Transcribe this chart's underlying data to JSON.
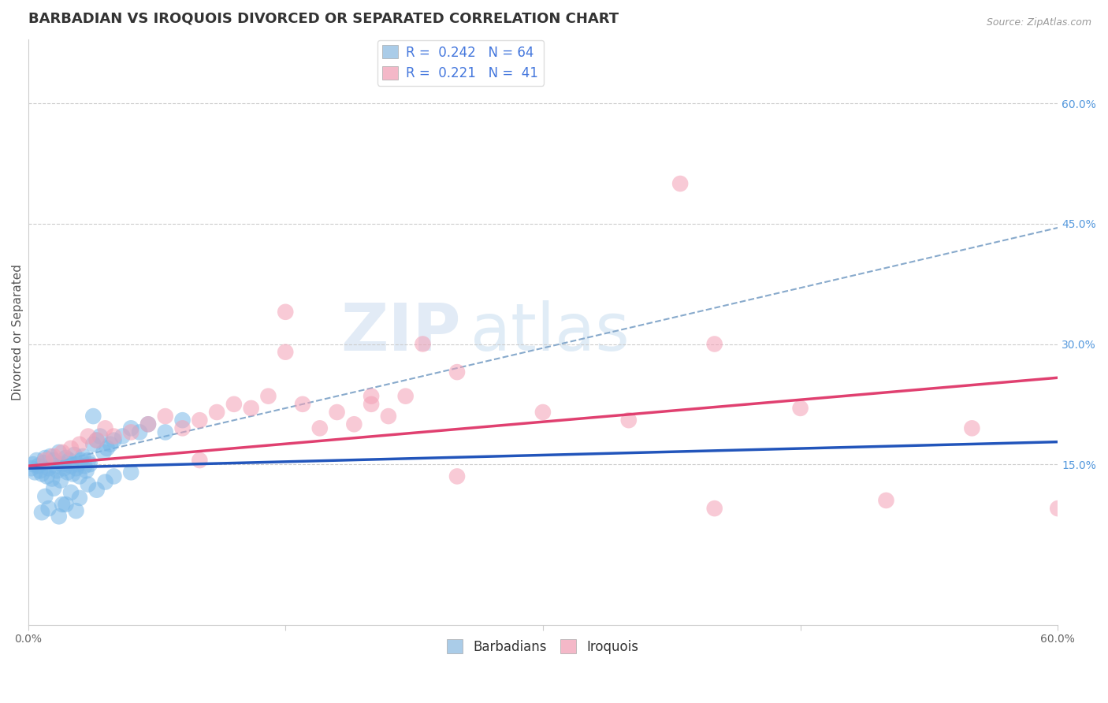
{
  "title": "BARBADIAN VS IROQUOIS DIVORCED OR SEPARATED CORRELATION CHART",
  "source": "Source: ZipAtlas.com",
  "ylabel": "Divorced or Separated",
  "right_yticks": [
    0.15,
    0.3,
    0.45,
    0.6
  ],
  "right_yticklabels": [
    "15.0%",
    "30.0%",
    "45.0%",
    "60.0%"
  ],
  "xlim": [
    0.0,
    0.6
  ],
  "ylim": [
    -0.05,
    0.68
  ],
  "barbadian_color": "#7ab8e8",
  "iroquois_color": "#f4a0b5",
  "barbadian_line_color": "#2255bb",
  "iroquois_line_color": "#e04070",
  "overall_line_color": "#88aacc",
  "R_barbadian": 0.242,
  "N_barbadian": 64,
  "R_iroquois": 0.221,
  "N_iroquois": 41,
  "legend_labels": [
    "Barbadians",
    "Iroquois"
  ],
  "barbadian_color_legend": "#aacce8",
  "iroquois_color_legend": "#f4b8c8",
  "barb_x": [
    0.002,
    0.003,
    0.004,
    0.005,
    0.006,
    0.007,
    0.008,
    0.009,
    0.01,
    0.011,
    0.012,
    0.013,
    0.014,
    0.015,
    0.016,
    0.017,
    0.018,
    0.019,
    0.02,
    0.021,
    0.022,
    0.023,
    0.024,
    0.025,
    0.026,
    0.027,
    0.028,
    0.029,
    0.03,
    0.031,
    0.032,
    0.033,
    0.034,
    0.035,
    0.036,
    0.038,
    0.04,
    0.042,
    0.044,
    0.046,
    0.048,
    0.05,
    0.055,
    0.06,
    0.065,
    0.07,
    0.08,
    0.09,
    0.01,
    0.015,
    0.02,
    0.025,
    0.03,
    0.035,
    0.04,
    0.045,
    0.05,
    0.06,
    0.008,
    0.012,
    0.018,
    0.022,
    0.028,
    0.038
  ],
  "barb_y": [
    0.145,
    0.15,
    0.14,
    0.155,
    0.148,
    0.142,
    0.138,
    0.152,
    0.158,
    0.135,
    0.145,
    0.16,
    0.132,
    0.155,
    0.148,
    0.142,
    0.165,
    0.13,
    0.15,
    0.145,
    0.158,
    0.14,
    0.155,
    0.148,
    0.138,
    0.162,
    0.145,
    0.15,
    0.135,
    0.155,
    0.16,
    0.148,
    0.142,
    0.155,
    0.15,
    0.175,
    0.18,
    0.185,
    0.165,
    0.17,
    0.175,
    0.18,
    0.185,
    0.195,
    0.19,
    0.2,
    0.19,
    0.205,
    0.11,
    0.12,
    0.1,
    0.115,
    0.108,
    0.125,
    0.118,
    0.128,
    0.135,
    0.14,
    0.09,
    0.095,
    0.085,
    0.1,
    0.092,
    0.21
  ],
  "iroq_x": [
    0.01,
    0.015,
    0.02,
    0.025,
    0.03,
    0.035,
    0.04,
    0.045,
    0.05,
    0.06,
    0.07,
    0.08,
    0.09,
    0.1,
    0.11,
    0.12,
    0.13,
    0.14,
    0.15,
    0.16,
    0.17,
    0.18,
    0.19,
    0.2,
    0.21,
    0.22,
    0.23,
    0.3,
    0.35,
    0.4,
    0.45,
    0.5,
    0.55,
    0.6,
    0.4,
    0.15,
    0.2,
    0.25,
    0.1,
    0.38,
    0.25
  ],
  "iroq_y": [
    0.155,
    0.16,
    0.165,
    0.17,
    0.175,
    0.185,
    0.18,
    0.195,
    0.185,
    0.19,
    0.2,
    0.21,
    0.195,
    0.205,
    0.215,
    0.225,
    0.22,
    0.235,
    0.29,
    0.225,
    0.195,
    0.215,
    0.2,
    0.225,
    0.21,
    0.235,
    0.3,
    0.215,
    0.205,
    0.095,
    0.22,
    0.105,
    0.195,
    0.095,
    0.3,
    0.34,
    0.235,
    0.265,
    0.155,
    0.5,
    0.135
  ],
  "barb_line_x0": 0.0,
  "barb_line_x1": 0.6,
  "barb_line_y0": 0.145,
  "barb_line_y1": 0.178,
  "iroq_line_x0": 0.0,
  "iroq_line_x1": 0.6,
  "iroq_line_y0": 0.148,
  "iroq_line_y1": 0.258,
  "dash_line_x0": 0.0,
  "dash_line_x1": 0.6,
  "dash_line_y0": 0.145,
  "dash_line_y1": 0.445,
  "grid_color": "#cccccc",
  "background_color": "#ffffff",
  "title_fontsize": 13,
  "axis_label_fontsize": 11,
  "tick_fontsize": 10,
  "legend_fontsize": 12,
  "marker_size": 220
}
